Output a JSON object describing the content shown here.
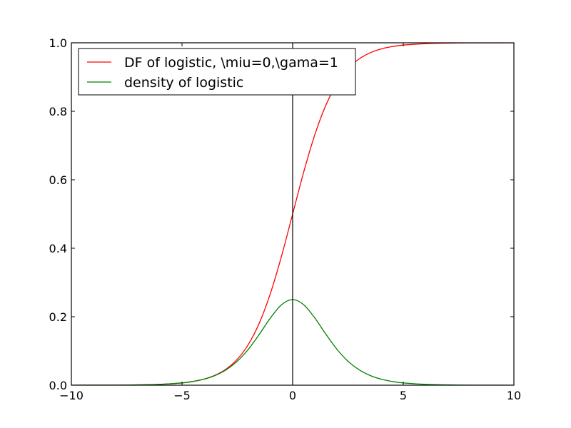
{
  "chart_data": {
    "type": "line",
    "title": "",
    "xlabel": "",
    "ylabel": "",
    "xlim": [
      -10,
      10
    ],
    "ylim": [
      0.0,
      1.0
    ],
    "x_ticks": [
      {
        "value": -10,
        "label": "−10"
      },
      {
        "value": -5,
        "label": "−5"
      },
      {
        "value": 0,
        "label": "0"
      },
      {
        "value": 5,
        "label": "5"
      },
      {
        "value": 10,
        "label": "10"
      }
    ],
    "y_ticks": [
      {
        "value": 0.0,
        "label": "0.0"
      },
      {
        "value": 0.2,
        "label": "0.2"
      },
      {
        "value": 0.4,
        "label": "0.4"
      },
      {
        "value": 0.6,
        "label": "0.6"
      },
      {
        "value": 0.8,
        "label": "0.8"
      },
      {
        "value": 1.0,
        "label": "1.0"
      }
    ],
    "grid": false,
    "legend_position": "top-left",
    "vertical_line_x": 0,
    "vertical_line_color": "#000000",
    "series": [
      {
        "name": "DF of logistic, \\miu=0,\\gama=1",
        "color": "#ff0000",
        "x": [
          -10,
          -9,
          -8,
          -7,
          -6,
          -5,
          -4.5,
          -4,
          -3.5,
          -3,
          -2.5,
          -2,
          -1.5,
          -1,
          -0.5,
          0,
          0.5,
          1,
          1.5,
          2,
          2.5,
          3,
          3.5,
          4,
          4.5,
          5,
          6,
          7,
          8,
          9,
          10
        ],
        "y": [
          5e-05,
          0.00012,
          0.00034,
          0.00091,
          0.00247,
          0.00669,
          0.01099,
          0.01799,
          0.02931,
          0.04743,
          0.07586,
          0.1192,
          0.18243,
          0.26894,
          0.37754,
          0.5,
          0.62246,
          0.73106,
          0.81757,
          0.8808,
          0.92414,
          0.95257,
          0.97069,
          0.98201,
          0.98901,
          0.99331,
          0.99753,
          0.99909,
          0.99966,
          0.99988,
          0.99995
        ]
      },
      {
        "name": "density of logistic",
        "color": "#008000",
        "x": [
          -10,
          -9,
          -8,
          -7,
          -6,
          -5,
          -4.5,
          -4,
          -3.5,
          -3,
          -2.5,
          -2,
          -1.5,
          -1,
          -0.5,
          0,
          0.5,
          1,
          1.5,
          2,
          2.5,
          3,
          3.5,
          4,
          4.5,
          5,
          6,
          7,
          8,
          9,
          10
        ],
        "y": [
          5e-05,
          0.00012,
          0.00034,
          0.00091,
          0.00247,
          0.00665,
          0.01087,
          0.01766,
          0.02845,
          0.04518,
          0.07011,
          0.10499,
          0.14915,
          0.19661,
          0.235,
          0.25,
          0.235,
          0.19661,
          0.14915,
          0.10499,
          0.07011,
          0.04518,
          0.02845,
          0.01766,
          0.01087,
          0.00665,
          0.00247,
          0.00091,
          0.00034,
          0.00012,
          5e-05
        ]
      }
    ]
  }
}
